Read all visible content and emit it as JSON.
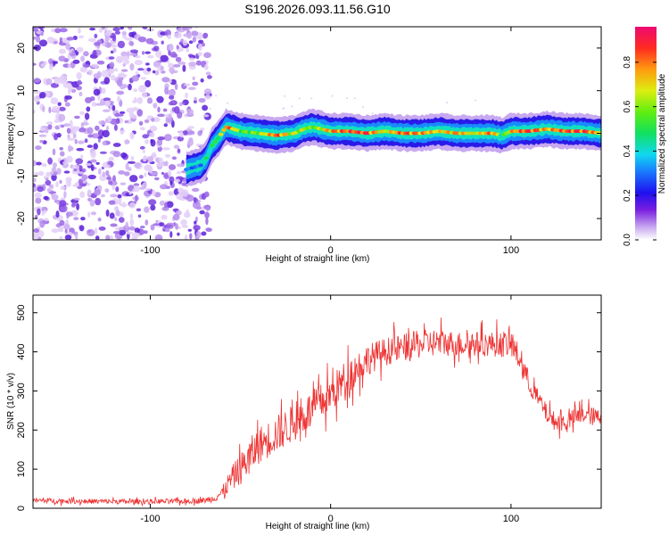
{
  "figure_title": "S196.2026.093.11.56.G10",
  "chart_data": [
    {
      "type": "heatmap",
      "xlabel": "Height of straight line (km)",
      "ylabel": "Frequency (Hz)",
      "xlim": [
        -165,
        150
      ],
      "ylim": [
        -25,
        25
      ],
      "xticks": [
        -100,
        0,
        100
      ],
      "xtick_labels": [
        "-100",
        "0",
        "100"
      ],
      "yticks": [
        -20,
        -10,
        0,
        10,
        20
      ],
      "ytick_labels": [
        "-20",
        "-10",
        "0",
        "10",
        "20"
      ],
      "noise_region_x": [
        -165,
        -67
      ],
      "ridge": {
        "x": [
          -80,
          -76,
          -72,
          -69,
          -66,
          -62,
          -58,
          -54,
          -50,
          -40,
          -30,
          -20,
          -15,
          -10,
          0,
          10,
          20,
          30,
          40,
          50,
          60,
          70,
          80,
          90,
          95,
          100,
          110,
          120,
          130,
          140,
          150
        ],
        "freq": [
          -8.5,
          -8,
          -7.5,
          -6,
          -3,
          -1,
          1.5,
          1,
          0.5,
          0,
          -0.5,
          0,
          1,
          1.5,
          0.5,
          0.5,
          0,
          0.5,
          0,
          0,
          0.5,
          0,
          0,
          0,
          -0.5,
          0.5,
          0.5,
          1,
          0.5,
          0.5,
          0
        ],
        "amp": [
          0.35,
          0.3,
          0.35,
          0.5,
          0.5,
          0.6,
          0.9,
          0.8,
          0.6,
          0.65,
          0.9,
          0.7,
          0.7,
          0.6,
          0.85,
          0.9,
          0.95,
          0.7,
          0.9,
          0.85,
          0.75,
          0.85,
          0.7,
          0.9,
          0.5,
          0.8,
          0.95,
          0.8,
          0.9,
          0.95,
          0.75
        ]
      },
      "colorbar": {
        "label": "Normalized spectral amplitude",
        "ticks": [
          0.0,
          0.2,
          0.4,
          0.6,
          0.8
        ],
        "tick_labels": [
          "0.0",
          "0.2",
          "0.4",
          "0.6",
          "0.8"
        ],
        "range": [
          0,
          0.96
        ]
      }
    },
    {
      "type": "line",
      "xlabel": "Height of straight line (km)",
      "ylabel": "SNR (10 * v/v)",
      "xlim": [
        -165,
        150
      ],
      "ylim": [
        0,
        545
      ],
      "xticks": [
        -100,
        0,
        100
      ],
      "xtick_labels": [
        "-100",
        "0",
        "100"
      ],
      "yticks": [
        0,
        100,
        200,
        300,
        400,
        500
      ],
      "ytick_labels": [
        "0",
        "100",
        "200",
        "300",
        "400",
        "500"
      ],
      "series": [
        {
          "name": "SNR",
          "color": "#ee3333",
          "x": [
            -165,
            -140,
            -110,
            -80,
            -70,
            -65,
            -60,
            -55,
            -50,
            -45,
            -40,
            -30,
            -20,
            -10,
            0,
            10,
            20,
            30,
            40,
            50,
            60,
            70,
            80,
            90,
            100,
            105,
            110,
            115,
            120,
            125,
            130,
            140,
            150
          ],
          "noise": [
            8,
            8,
            8,
            8,
            9,
            12,
            20,
            40,
            50,
            60,
            60,
            60,
            60,
            60,
            60,
            60,
            50,
            45,
            45,
            45,
            45,
            40,
            40,
            40,
            45,
            40,
            35,
            30,
            30,
            30,
            30,
            30,
            30
          ]
        }
      ],
      "envelope": {
        "x": [
          -165,
          -140,
          -110,
          -80,
          -70,
          -65,
          -60,
          -55,
          -50,
          -45,
          -40,
          -30,
          -20,
          -10,
          0,
          10,
          20,
          30,
          40,
          50,
          60,
          70,
          80,
          90,
          100,
          105,
          110,
          115,
          120,
          125,
          130,
          140,
          150
        ],
        "snr": [
          20,
          18,
          17,
          18,
          20,
          25,
          40,
          75,
          100,
          130,
          160,
          190,
          220,
          255,
          290,
          340,
          380,
          400,
          410,
          420,
          425,
          420,
          420,
          420,
          420,
          380,
          320,
          280,
          240,
          220,
          220,
          240,
          230
        ]
      }
    }
  ]
}
